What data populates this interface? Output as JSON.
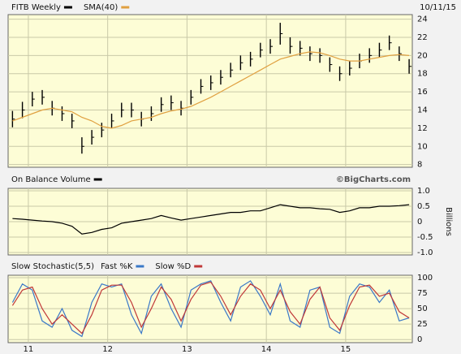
{
  "chart_data": [
    {
      "type": "ohlc",
      "subtitle": "10/11/15",
      "x": [
        2010.8,
        2010.925,
        2011.05,
        2011.175,
        2011.3,
        2011.425,
        2011.55,
        2011.675,
        2011.8,
        2011.925,
        2012.05,
        2012.175,
        2012.3,
        2012.425,
        2012.55,
        2012.675,
        2012.8,
        2012.925,
        2013.05,
        2013.175,
        2013.3,
        2013.425,
        2013.55,
        2013.675,
        2013.8,
        2013.925,
        2014.05,
        2014.175,
        2014.3,
        2014.425,
        2014.55,
        2014.675,
        2014.8,
        2014.925,
        2015.05,
        2015.175,
        2015.3,
        2015.425,
        2015.55,
        2015.675,
        2015.8
      ],
      "xlim": [
        2010.745,
        2015.84
      ],
      "xticks": [
        2011,
        2012,
        2013,
        2014,
        2015
      ],
      "ylim": [
        7.7,
        24.5
      ],
      "yticks": [
        8,
        10,
        12,
        14,
        16,
        18,
        20,
        22,
        24
      ],
      "grid": true,
      "series": [
        {
          "name": "FITB Weekly",
          "color": "#000000",
          "high": [
            13.9,
            14.9,
            16.0,
            16.2,
            15.0,
            14.4,
            13.6,
            11.0,
            11.8,
            12.6,
            13.6,
            14.8,
            14.8,
            13.8,
            14.4,
            15.4,
            15.6,
            15.0,
            16.2,
            17.4,
            17.8,
            18.4,
            19.2,
            20.0,
            20.4,
            21.4,
            21.8,
            23.6,
            22.0,
            21.6,
            21.0,
            20.8,
            19.8,
            18.8,
            19.4,
            20.2,
            20.8,
            21.4,
            22.2,
            21.0,
            19.6
          ],
          "low": [
            12.1,
            13.1,
            14.4,
            14.6,
            13.4,
            12.8,
            12.0,
            9.2,
            10.2,
            11.0,
            12.0,
            13.2,
            13.2,
            12.2,
            12.8,
            13.8,
            14.0,
            13.4,
            14.6,
            15.8,
            16.2,
            16.8,
            17.6,
            18.4,
            18.8,
            19.8,
            20.2,
            21.2,
            20.2,
            20.0,
            19.4,
            19.2,
            18.2,
            17.2,
            17.8,
            18.6,
            19.2,
            19.8,
            20.6,
            19.4,
            18.0
          ],
          "close": [
            13.0,
            14.0,
            15.2,
            15.4,
            14.2,
            13.6,
            12.8,
            10.0,
            11.0,
            11.8,
            12.8,
            14.0,
            14.0,
            13.0,
            13.6,
            14.6,
            14.8,
            14.2,
            15.4,
            16.6,
            17.0,
            17.6,
            18.4,
            19.2,
            19.6,
            20.6,
            21.0,
            22.4,
            21.0,
            20.8,
            20.2,
            20.0,
            19.0,
            18.0,
            18.6,
            19.4,
            20.0,
            20.6,
            21.4,
            20.2,
            18.8
          ]
        },
        {
          "name": "SMA(40)",
          "color": "#e0a040",
          "values": [
            12.8,
            13.2,
            13.6,
            14.0,
            14.2,
            14.0,
            13.8,
            13.2,
            12.8,
            12.2,
            12.0,
            12.3,
            12.8,
            13.0,
            13.2,
            13.6,
            13.9,
            14.1,
            14.4,
            14.9,
            15.4,
            16.0,
            16.6,
            17.2,
            17.8,
            18.4,
            19.0,
            19.6,
            19.9,
            20.2,
            20.4,
            20.3,
            20.0,
            19.6,
            19.4,
            19.4,
            19.6,
            19.8,
            20.0,
            20.1,
            20.0
          ]
        }
      ]
    },
    {
      "type": "line",
      "annotation": "©BigCharts.com",
      "ylabel": "Billions",
      "x": [
        2010.8,
        2010.925,
        2011.05,
        2011.175,
        2011.3,
        2011.425,
        2011.55,
        2011.675,
        2011.8,
        2011.925,
        2012.05,
        2012.175,
        2012.3,
        2012.425,
        2012.55,
        2012.675,
        2012.8,
        2012.925,
        2013.05,
        2013.175,
        2013.3,
        2013.425,
        2013.55,
        2013.675,
        2013.8,
        2013.925,
        2014.05,
        2014.175,
        2014.3,
        2014.425,
        2014.55,
        2014.675,
        2014.8,
        2014.925,
        2015.05,
        2015.175,
        2015.3,
        2015.425,
        2015.55,
        2015.675,
        2015.8
      ],
      "xlim": [
        2010.745,
        2015.84
      ],
      "xticks": [
        2011,
        2012,
        2013,
        2014,
        2015
      ],
      "ylim": [
        -1.08,
        1.08
      ],
      "yticks": [
        {
          "value": 1,
          "label": "1.0"
        },
        {
          "value": 0.5,
          "label": "0.5"
        },
        0,
        {
          "value": -0.5,
          "label": "-0.5"
        },
        {
          "value": -1,
          "label": "-1.0"
        }
      ],
      "grid": true,
      "series": [
        {
          "name": "On Balance Volume",
          "color": "#000000",
          "values": [
            0.1,
            0.08,
            0.05,
            0.02,
            0.0,
            -0.05,
            -0.15,
            -0.4,
            -0.35,
            -0.25,
            -0.2,
            -0.05,
            0.0,
            0.05,
            0.1,
            0.2,
            0.12,
            0.05,
            0.1,
            0.15,
            0.2,
            0.25,
            0.3,
            0.3,
            0.35,
            0.35,
            0.45,
            0.55,
            0.5,
            0.45,
            0.45,
            0.42,
            0.4,
            0.3,
            0.35,
            0.45,
            0.45,
            0.5,
            0.5,
            0.52,
            0.55
          ]
        }
      ]
    },
    {
      "type": "line",
      "title": "Slow Stochastic(5,5)",
      "x": [
        2010.8,
        2010.925,
        2011.05,
        2011.175,
        2011.3,
        2011.425,
        2011.55,
        2011.675,
        2011.8,
        2011.925,
        2012.05,
        2012.175,
        2012.3,
        2012.425,
        2012.55,
        2012.675,
        2012.8,
        2012.925,
        2013.05,
        2013.175,
        2013.3,
        2013.425,
        2013.55,
        2013.675,
        2013.8,
        2013.925,
        2014.05,
        2014.175,
        2014.3,
        2014.425,
        2014.55,
        2014.675,
        2014.8,
        2014.925,
        2015.05,
        2015.175,
        2015.3,
        2015.425,
        2015.55,
        2015.675,
        2015.8
      ],
      "xlim": [
        2010.745,
        2015.84
      ],
      "xticks": [
        {
          "value": 2011,
          "label": "11"
        },
        {
          "value": 2012,
          "label": "12"
        },
        {
          "value": 2013,
          "label": "13"
        },
        {
          "value": 2014,
          "label": "14"
        },
        {
          "value": 2015,
          "label": "15"
        }
      ],
      "ylim": [
        -5,
        104
      ],
      "yticks": [
        0,
        25,
        50,
        75,
        100
      ],
      "grid": true,
      "series": [
        {
          "name": "Fast %K",
          "color": "#3a78c8",
          "values": [
            60,
            90,
            80,
            30,
            20,
            50,
            15,
            5,
            60,
            90,
            85,
            90,
            40,
            10,
            70,
            90,
            50,
            20,
            80,
            90,
            95,
            60,
            30,
            85,
            95,
            70,
            40,
            90,
            30,
            20,
            80,
            85,
            20,
            10,
            70,
            90,
            85,
            60,
            80,
            30,
            35
          ]
        },
        {
          "name": "Slow %D",
          "color": "#c03838",
          "values": [
            55,
            80,
            85,
            50,
            25,
            40,
            25,
            10,
            40,
            80,
            88,
            88,
            60,
            20,
            50,
            85,
            65,
            30,
            65,
            88,
            93,
            70,
            40,
            70,
            90,
            80,
            50,
            80,
            45,
            25,
            65,
            85,
            35,
            15,
            55,
            85,
            88,
            70,
            75,
            45,
            35
          ]
        }
      ]
    }
  ]
}
